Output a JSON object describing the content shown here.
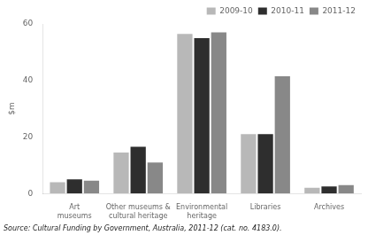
{
  "chart_data": {
    "type": "bar",
    "categories": [
      "Art\nmuseums",
      "Other museums &\ncultural heritage",
      "Environmental\nheritage",
      "Libraries",
      "Archives"
    ],
    "series": [
      {
        "name": "2009-10",
        "color": "#b8b8b8",
        "values": [
          4.0,
          14.5,
          56.5,
          21.0,
          2.0
        ]
      },
      {
        "name": "2010-11",
        "color": "#2e2e2e",
        "values": [
          5.0,
          16.5,
          55.0,
          21.0,
          2.5
        ]
      },
      {
        "name": "2011-12",
        "color": "#888888",
        "values": [
          4.5,
          11.0,
          57.0,
          41.5,
          3.0
        ]
      }
    ],
    "ylabel": "$m",
    "ylim": [
      0,
      60
    ],
    "yticks": [
      0,
      20,
      40,
      60
    ],
    "grid": false,
    "legend": "upper right",
    "annotations": [
      "Source: Cultural Funding by Government, Australia, 2011-12 (cat. no. 4183.0)."
    ]
  }
}
